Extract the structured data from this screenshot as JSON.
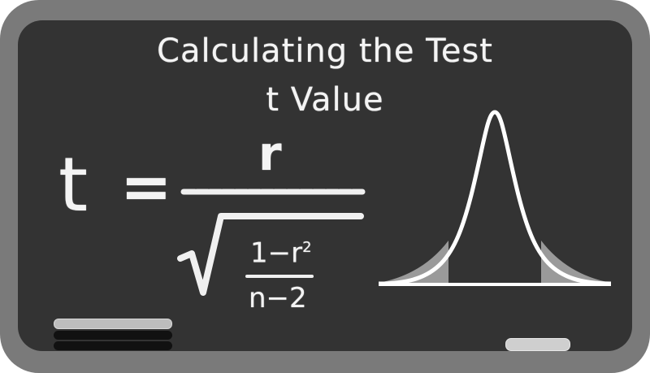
{
  "board": {
    "title_line_1": "Calculating the Test",
    "title_line_2": "t Value"
  },
  "formula": {
    "lhs": "t",
    "equals": "=",
    "numerator": "r",
    "inner_numerator_base": "1−r",
    "inner_numerator_exponent": "2",
    "inner_denominator": "n−2"
  },
  "colors": {
    "frame": "#7a7a7a",
    "surface": "#333333",
    "chalk": "#f4f4f4",
    "tail_shading": "#9a9a9a"
  },
  "icons": {
    "distribution": "bell-curve-icon",
    "eraser": "eraser-icon",
    "chalk": "chalk-icon"
  }
}
